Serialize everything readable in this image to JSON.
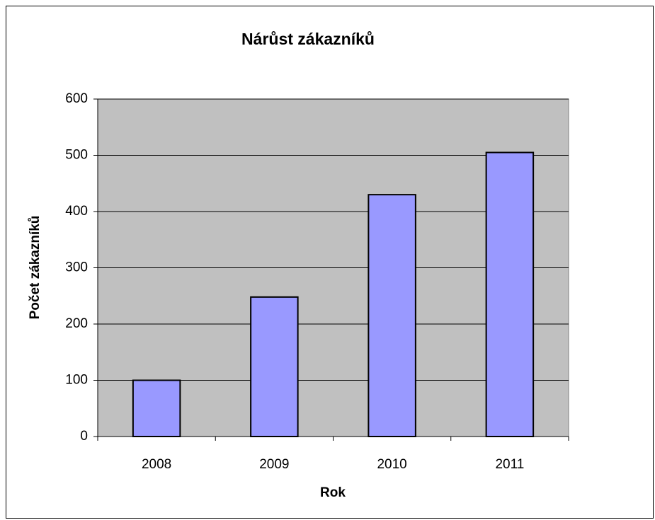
{
  "chart_data": {
    "type": "bar",
    "title": "Nárůst zákazníků",
    "x_label": "Rok",
    "y_label": "Počet zákazníků",
    "categories": [
      "2008",
      "2009",
      "2010",
      "2011"
    ],
    "values": [
      100,
      248,
      430,
      505
    ],
    "color": "#9999ff",
    "ylim": [
      0,
      600
    ],
    "yticks": [
      0,
      100,
      200,
      300,
      400,
      500,
      600
    ],
    "grid": true
  }
}
